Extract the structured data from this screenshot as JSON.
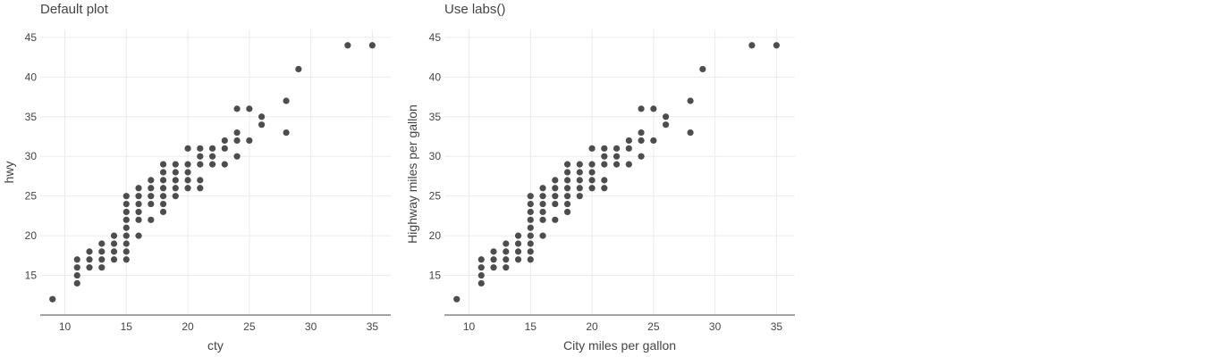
{
  "chart_data": [
    {
      "type": "scatter",
      "title": "Default plot",
      "xlabel": "cty",
      "ylabel": "hwy",
      "xlim": [
        8,
        36.5
      ],
      "ylim": [
        10,
        46
      ],
      "xticks": [
        10,
        15,
        20,
        25,
        30,
        35
      ],
      "yticks": [
        15,
        20,
        25,
        30,
        35,
        40,
        45
      ],
      "xtick_labels": [
        "10",
        "15",
        "20",
        "25",
        "30",
        "35"
      ],
      "ytick_labels": [
        "15",
        "20",
        "25",
        "30",
        "35",
        "40",
        "45"
      ],
      "grid": true,
      "points": [
        [
          9,
          12
        ],
        [
          11,
          14
        ],
        [
          11,
          15
        ],
        [
          11,
          16
        ],
        [
          11,
          17
        ],
        [
          12,
          16
        ],
        [
          12,
          17
        ],
        [
          12,
          18
        ],
        [
          13,
          16
        ],
        [
          13,
          17
        ],
        [
          13,
          18
        ],
        [
          13,
          19
        ],
        [
          14,
          17
        ],
        [
          14,
          18
        ],
        [
          14,
          19
        ],
        [
          14,
          20
        ],
        [
          15,
          17
        ],
        [
          15,
          18
        ],
        [
          15,
          19
        ],
        [
          15,
          20
        ],
        [
          15,
          21
        ],
        [
          15,
          22
        ],
        [
          15,
          23
        ],
        [
          15,
          24
        ],
        [
          15,
          25
        ],
        [
          16,
          20
        ],
        [
          16,
          22
        ],
        [
          16,
          23
        ],
        [
          16,
          24
        ],
        [
          16,
          25
        ],
        [
          16,
          26
        ],
        [
          17,
          22
        ],
        [
          17,
          24
        ],
        [
          17,
          25
        ],
        [
          17,
          26
        ],
        [
          17,
          27
        ],
        [
          18,
          23
        ],
        [
          18,
          24
        ],
        [
          18,
          25
        ],
        [
          18,
          26
        ],
        [
          18,
          27
        ],
        [
          18,
          28
        ],
        [
          18,
          29
        ],
        [
          19,
          25
        ],
        [
          19,
          26
        ],
        [
          19,
          27
        ],
        [
          19,
          28
        ],
        [
          19,
          29
        ],
        [
          20,
          26
        ],
        [
          20,
          27
        ],
        [
          20,
          28
        ],
        [
          20,
          29
        ],
        [
          20,
          31
        ],
        [
          21,
          26
        ],
        [
          21,
          27
        ],
        [
          21,
          29
        ],
        [
          21,
          30
        ],
        [
          21,
          31
        ],
        [
          22,
          29
        ],
        [
          22,
          30
        ],
        [
          22,
          31
        ],
        [
          23,
          29
        ],
        [
          23,
          31
        ],
        [
          23,
          32
        ],
        [
          24,
          30
        ],
        [
          24,
          32
        ],
        [
          24,
          33
        ],
        [
          24,
          36
        ],
        [
          25,
          32
        ],
        [
          25,
          36
        ],
        [
          26,
          34
        ],
        [
          26,
          35
        ],
        [
          28,
          33
        ],
        [
          28,
          37
        ],
        [
          29,
          41
        ],
        [
          33,
          44
        ],
        [
          35,
          44
        ]
      ]
    },
    {
      "type": "scatter",
      "title": "Use labs()",
      "xlabel": "City miles per gallon",
      "ylabel": "Highway miles per gallon",
      "xlim": [
        8,
        36.5
      ],
      "ylim": [
        10,
        46
      ],
      "xticks": [
        10,
        15,
        20,
        25,
        30,
        35
      ],
      "yticks": [
        15,
        20,
        25,
        30,
        35,
        40,
        45
      ],
      "xtick_labels": [
        "10",
        "15",
        "20",
        "25",
        "30",
        "35"
      ],
      "ytick_labels": [
        "15",
        "20",
        "25",
        "30",
        "35",
        "40",
        "45"
      ],
      "grid": true,
      "points": [
        [
          9,
          12
        ],
        [
          11,
          14
        ],
        [
          11,
          15
        ],
        [
          11,
          16
        ],
        [
          11,
          17
        ],
        [
          12,
          16
        ],
        [
          12,
          17
        ],
        [
          12,
          18
        ],
        [
          13,
          16
        ],
        [
          13,
          17
        ],
        [
          13,
          18
        ],
        [
          13,
          19
        ],
        [
          14,
          17
        ],
        [
          14,
          18
        ],
        [
          14,
          19
        ],
        [
          14,
          20
        ],
        [
          15,
          17
        ],
        [
          15,
          18
        ],
        [
          15,
          19
        ],
        [
          15,
          20
        ],
        [
          15,
          21
        ],
        [
          15,
          22
        ],
        [
          15,
          23
        ],
        [
          15,
          24
        ],
        [
          15,
          25
        ],
        [
          16,
          20
        ],
        [
          16,
          22
        ],
        [
          16,
          23
        ],
        [
          16,
          24
        ],
        [
          16,
          25
        ],
        [
          16,
          26
        ],
        [
          17,
          22
        ],
        [
          17,
          24
        ],
        [
          17,
          25
        ],
        [
          17,
          26
        ],
        [
          17,
          27
        ],
        [
          18,
          23
        ],
        [
          18,
          24
        ],
        [
          18,
          25
        ],
        [
          18,
          26
        ],
        [
          18,
          27
        ],
        [
          18,
          28
        ],
        [
          18,
          29
        ],
        [
          19,
          25
        ],
        [
          19,
          26
        ],
        [
          19,
          27
        ],
        [
          19,
          28
        ],
        [
          19,
          29
        ],
        [
          20,
          26
        ],
        [
          20,
          27
        ],
        [
          20,
          28
        ],
        [
          20,
          29
        ],
        [
          20,
          31
        ],
        [
          21,
          26
        ],
        [
          21,
          27
        ],
        [
          21,
          29
        ],
        [
          21,
          30
        ],
        [
          21,
          31
        ],
        [
          22,
          29
        ],
        [
          22,
          30
        ],
        [
          22,
          31
        ],
        [
          23,
          29
        ],
        [
          23,
          31
        ],
        [
          23,
          32
        ],
        [
          24,
          30
        ],
        [
          24,
          32
        ],
        [
          24,
          33
        ],
        [
          24,
          36
        ],
        [
          25,
          32
        ],
        [
          25,
          36
        ],
        [
          26,
          34
        ],
        [
          26,
          35
        ],
        [
          28,
          33
        ],
        [
          28,
          37
        ],
        [
          29,
          41
        ],
        [
          33,
          44
        ],
        [
          35,
          44
        ]
      ]
    }
  ],
  "style": {
    "point_color": "#4d4d4d",
    "grid_color": "#ebebeb",
    "axis_color": "#444444",
    "text_color": "#444444"
  }
}
